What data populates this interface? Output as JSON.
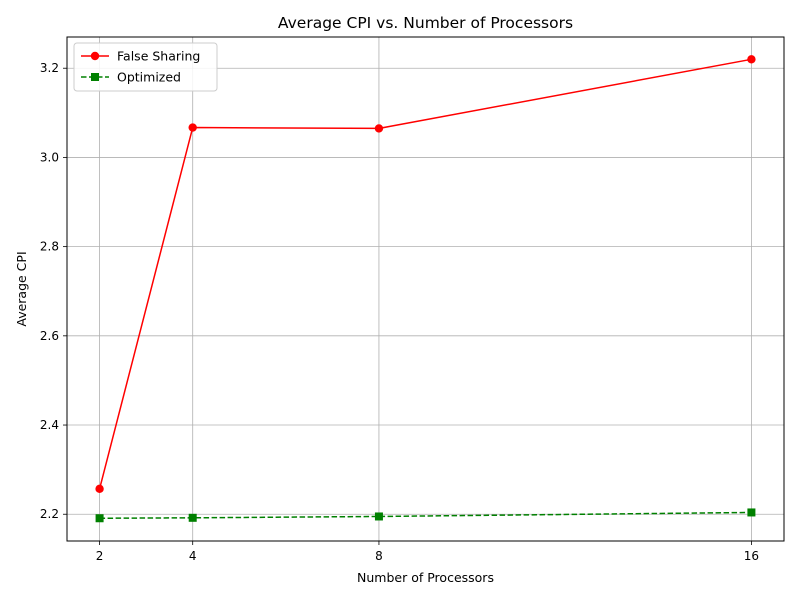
{
  "chart_data": {
    "type": "line",
    "title": "Average CPI vs. Number of Processors",
    "xlabel": "Number of Processors",
    "ylabel": "Average CPI",
    "x": [
      2,
      4,
      8,
      16
    ],
    "x_ticks": [
      "2",
      "4",
      "8",
      "16"
    ],
    "y_ticks": [
      "2.2",
      "2.4",
      "2.6",
      "2.8",
      "3.0",
      "3.2"
    ],
    "xlim": [
      1.3,
      16.7
    ],
    "ylim": [
      2.14,
      3.27
    ],
    "grid": true,
    "legend_position": "top-left",
    "series": [
      {
        "name": "False Sharing",
        "values": [
          2.257,
          3.067,
          3.065,
          3.22
        ],
        "color": "#ff0000",
        "marker": "circle",
        "line_style": "solid"
      },
      {
        "name": "Optimized",
        "values": [
          2.191,
          2.192,
          2.195,
          2.204
        ],
        "color": "#008000",
        "marker": "square",
        "line_style": "dashed"
      }
    ]
  }
}
